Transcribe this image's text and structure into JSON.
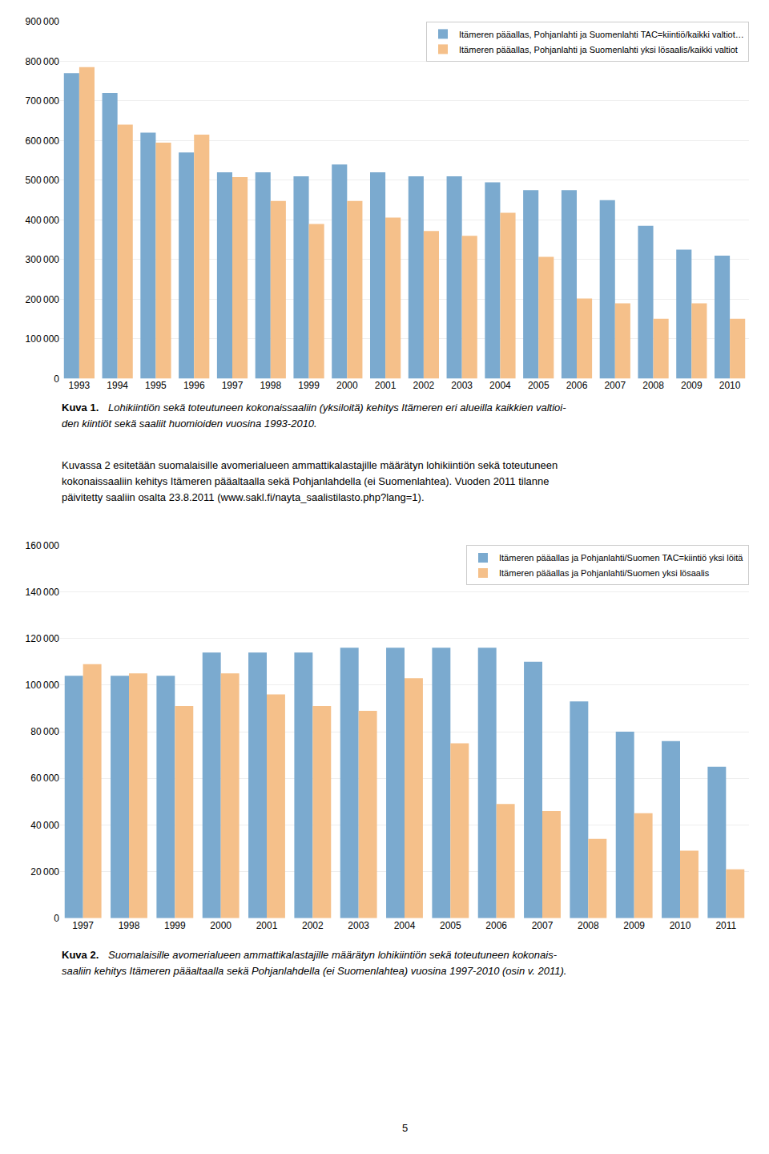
{
  "chart_data": [
    {
      "type": "bar",
      "categories": [
        1993,
        1994,
        1995,
        1996,
        1997,
        1998,
        1999,
        2000,
        2001,
        2002,
        2003,
        2004,
        2005,
        2006,
        2007,
        2008,
        2009,
        2010
      ],
      "series": [
        {
          "name": "Itämeren pääallas, Pohjanlahti ja Suomenlahti TAC=kiintiö/kaikki valtiot…",
          "color": "#7BAACF",
          "values": [
            770000,
            720000,
            620000,
            570000,
            520000,
            520000,
            510000,
            540000,
            520000,
            510000,
            510000,
            495000,
            475000,
            475000,
            450000,
            385000,
            325000,
            310000
          ]
        },
        {
          "name": "Itämeren pääallas, Pohjanlahti ja Suomenlahti yksi lösaalis/kaikki valtiot",
          "color": "#F5C08A",
          "values": [
            785000,
            640000,
            595000,
            615000,
            508000,
            448000,
            390000,
            448000,
            406000,
            372000,
            360000,
            418000,
            307000,
            202000,
            190000,
            151000,
            190000,
            151000
          ]
        }
      ],
      "ylim": [
        0,
        900000
      ],
      "yticks": [
        0,
        {
          "value": 100000,
          "label": "100 000"
        },
        {
          "value": 200000,
          "label": "200 000"
        },
        {
          "value": 300000,
          "label": "300 000"
        },
        {
          "value": 400000,
          "label": "400 000"
        },
        {
          "value": 500000,
          "label": "500 000"
        },
        {
          "value": 600000,
          "label": "600 000"
        },
        {
          "value": 700000,
          "label": "700 000"
        },
        {
          "value": 800000,
          "label": "800 000"
        },
        {
          "value": 900000,
          "label": "900 000"
        }
      ],
      "grid": true,
      "legend": "upper right",
      "annotations": [
        "Kuva 1.",
        "Lohikiintiön sekä toteutuneen kokonaissaaliin (yksiloitä) kehitys Itämeren eri alueilla kaikkien valtioi-",
        "den kiintiöt sekä saaliit huomioiden vuosina 1993-2010.",
        "Kuvassa 2 esitetään suomalaisille avomerialueen ammattikalastajille määrätyn lohikiintiön sekä toteutuneen",
        "kokonaissaaliin kehitys Itämeren pääaltaalla sekä Pohjanlahdella (ei Suomenlahtea). Vuoden 2011 tilanne",
        "päivitetty saaliin osalta 23.8.2011 (www.sakl.fi/nayta_saalistilasto.php?lang=1)."
      ]
    },
    {
      "type": "bar",
      "categories": [
        1997,
        1998,
        1999,
        2000,
        2001,
        2002,
        2003,
        2004,
        2005,
        2006,
        2007,
        2008,
        2009,
        2010,
        2011
      ],
      "series": [
        {
          "name": "Itämeren pääallas ja Pohjanlahti/Suomen TAC=kiintiö yksi löitä",
          "color": "#7BAACF",
          "values": [
            104000,
            104000,
            104000,
            114000,
            114000,
            114000,
            116000,
            116000,
            116000,
            116000,
            110000,
            93000,
            80000,
            76000,
            65000
          ]
        },
        {
          "name": "Itämeren pääallas ja Pohjanlahti/Suomen yksi lösaalis",
          "color": "#F5C08A",
          "values": [
            109000,
            105000,
            91000,
            105000,
            96000,
            91000,
            89000,
            103000,
            75000,
            49000,
            46000,
            34000,
            45000,
            29000,
            21000
          ]
        }
      ],
      "ylim": [
        0,
        160000
      ],
      "yticks": [
        0,
        {
          "value": 20000,
          "label": "20 000"
        },
        {
          "value": 40000,
          "label": "40 000"
        },
        {
          "value": 60000,
          "label": "60 000"
        },
        {
          "value": 80000,
          "label": "80 000"
        },
        {
          "value": 100000,
          "label": "100 000"
        },
        {
          "value": 120000,
          "label": "120 000"
        },
        {
          "value": 140000,
          "label": "140 000"
        },
        {
          "value": 160000,
          "label": "160 000"
        }
      ],
      "grid": true,
      "legend": "upper right",
      "annotations": [
        "Kuva 2.",
        "Suomalaisille avomerialueen ammattikalastajille määrätyn lohikiintiön sekä toteutuneen kokonais-",
        "saaliin kehitys Itämeren pääaltaalla sekä Pohjanlahdella (ei Suomenlahtea) vuosina 1997-2010 (osin v. 2011).",
        "5"
      ]
    }
  ]
}
